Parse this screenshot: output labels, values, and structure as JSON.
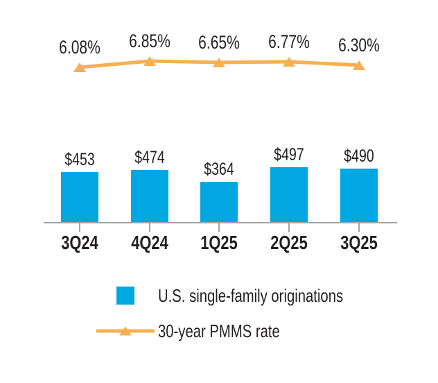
{
  "chart_data": {
    "type": "bar",
    "subtype": "bar-line-combo",
    "title": "",
    "xlabel": "",
    "ylabel": "",
    "grid": false,
    "legend_position": "bottom",
    "background": "#FFFFFF",
    "axis_color": "#A1A3A6",
    "text_color": "#231F20",
    "categories": [
      "3Q24",
      "4Q24",
      "1Q25",
      "2Q25",
      "3Q25"
    ],
    "series": [
      {
        "name": "U.S. single-family originations",
        "type": "bar",
        "color": "#00A7E1",
        "values": [
          453,
          474,
          364,
          497,
          490
        ],
        "labels": [
          "$453",
          "$474",
          "$364",
          "$497",
          "$490"
        ]
      },
      {
        "name": "30-year PMMS rate",
        "type": "line",
        "marker": "triangle-up",
        "color": "#F6B053",
        "values": [
          6.08,
          6.85,
          6.65,
          6.77,
          6.3
        ],
        "labels": [
          "6.08%",
          "6.85%",
          "6.65%",
          "6.77%",
          "6.30%"
        ]
      }
    ]
  }
}
